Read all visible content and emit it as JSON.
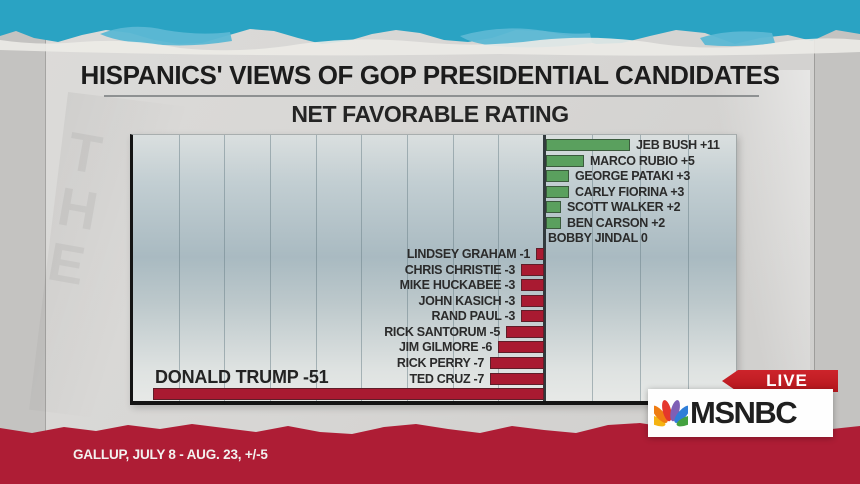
{
  "chart_data": {
    "type": "bar",
    "orientation": "horizontal",
    "title": "HISPANICS' VIEWS OF GOP PRESIDENTIAL CANDIDATES",
    "subtitle": "NET FAVORABLE RATING",
    "xlim": [
      -54,
      25
    ],
    "grid": true,
    "zero_line": true,
    "positive_color": "#5aa05e",
    "negative_color": "#a91a31",
    "categories": [
      "JEB BUSH",
      "MARCO RUBIO",
      "GEORGE PATAKI",
      "CARLY FIORINA",
      "SCOTT WALKER",
      "BEN CARSON",
      "BOBBY JINDAL",
      "LINDSEY GRAHAM",
      "CHRIS CHRISTIE",
      "MIKE HUCKABEE",
      "JOHN KASICH",
      "RAND PAUL",
      "RICK SANTORUM",
      "JIM GILMORE",
      "RICK PERRY",
      "TED CRUZ",
      "DONALD TRUMP"
    ],
    "values": [
      11,
      5,
      3,
      3,
      2,
      2,
      0,
      -1,
      -3,
      -3,
      -3,
      -3,
      -5,
      -6,
      -7,
      -7,
      -51
    ],
    "entries": [
      {
        "label": "JEB BUSH +11",
        "value": 11
      },
      {
        "label": "MARCO RUBIO +5",
        "value": 5
      },
      {
        "label": "GEORGE PATAKI +3",
        "value": 3
      },
      {
        "label": "CARLY FIORINA +3",
        "value": 3
      },
      {
        "label": "SCOTT WALKER +2",
        "value": 2
      },
      {
        "label": "BEN CARSON +2",
        "value": 2
      },
      {
        "label": "BOBBY JINDAL 0",
        "value": 0
      },
      {
        "label": "LINDSEY GRAHAM -1",
        "value": -1
      },
      {
        "label": "CHRIS CHRISTIE -3",
        "value": -3
      },
      {
        "label": "MIKE HUCKABEE -3",
        "value": -3
      },
      {
        "label": "JOHN KASICH -3",
        "value": -3
      },
      {
        "label": "RAND PAUL -3",
        "value": -3
      },
      {
        "label": "RICK SANTORUM -5",
        "value": -5
      },
      {
        "label": "JIM GILMORE -6",
        "value": -6
      },
      {
        "label": "RICK PERRY -7",
        "value": -7
      },
      {
        "label": "TED CRUZ -7",
        "value": -7
      },
      {
        "label": "DONALD TRUMP -51",
        "value": -51,
        "label_style": "large-above"
      }
    ]
  },
  "broadcast": {
    "source_line": "GALLUP, JULY 8 - AUG. 23, +/-5",
    "live_label": "LIVE",
    "network": "MSNBC",
    "peacock_icon": "nbc-peacock-icon",
    "peacock_colors": [
      "#f5b312",
      "#ef7c12",
      "#e5372c",
      "#7e5fb5",
      "#2f7ed8",
      "#43a13f"
    ],
    "colors": {
      "band_teal": "#2aa3c3",
      "band_teal_light": "#5cb8d4",
      "band_maroon": "#470a10",
      "band_red": "#ae1d35",
      "live_red": "#c1191f"
    }
  }
}
